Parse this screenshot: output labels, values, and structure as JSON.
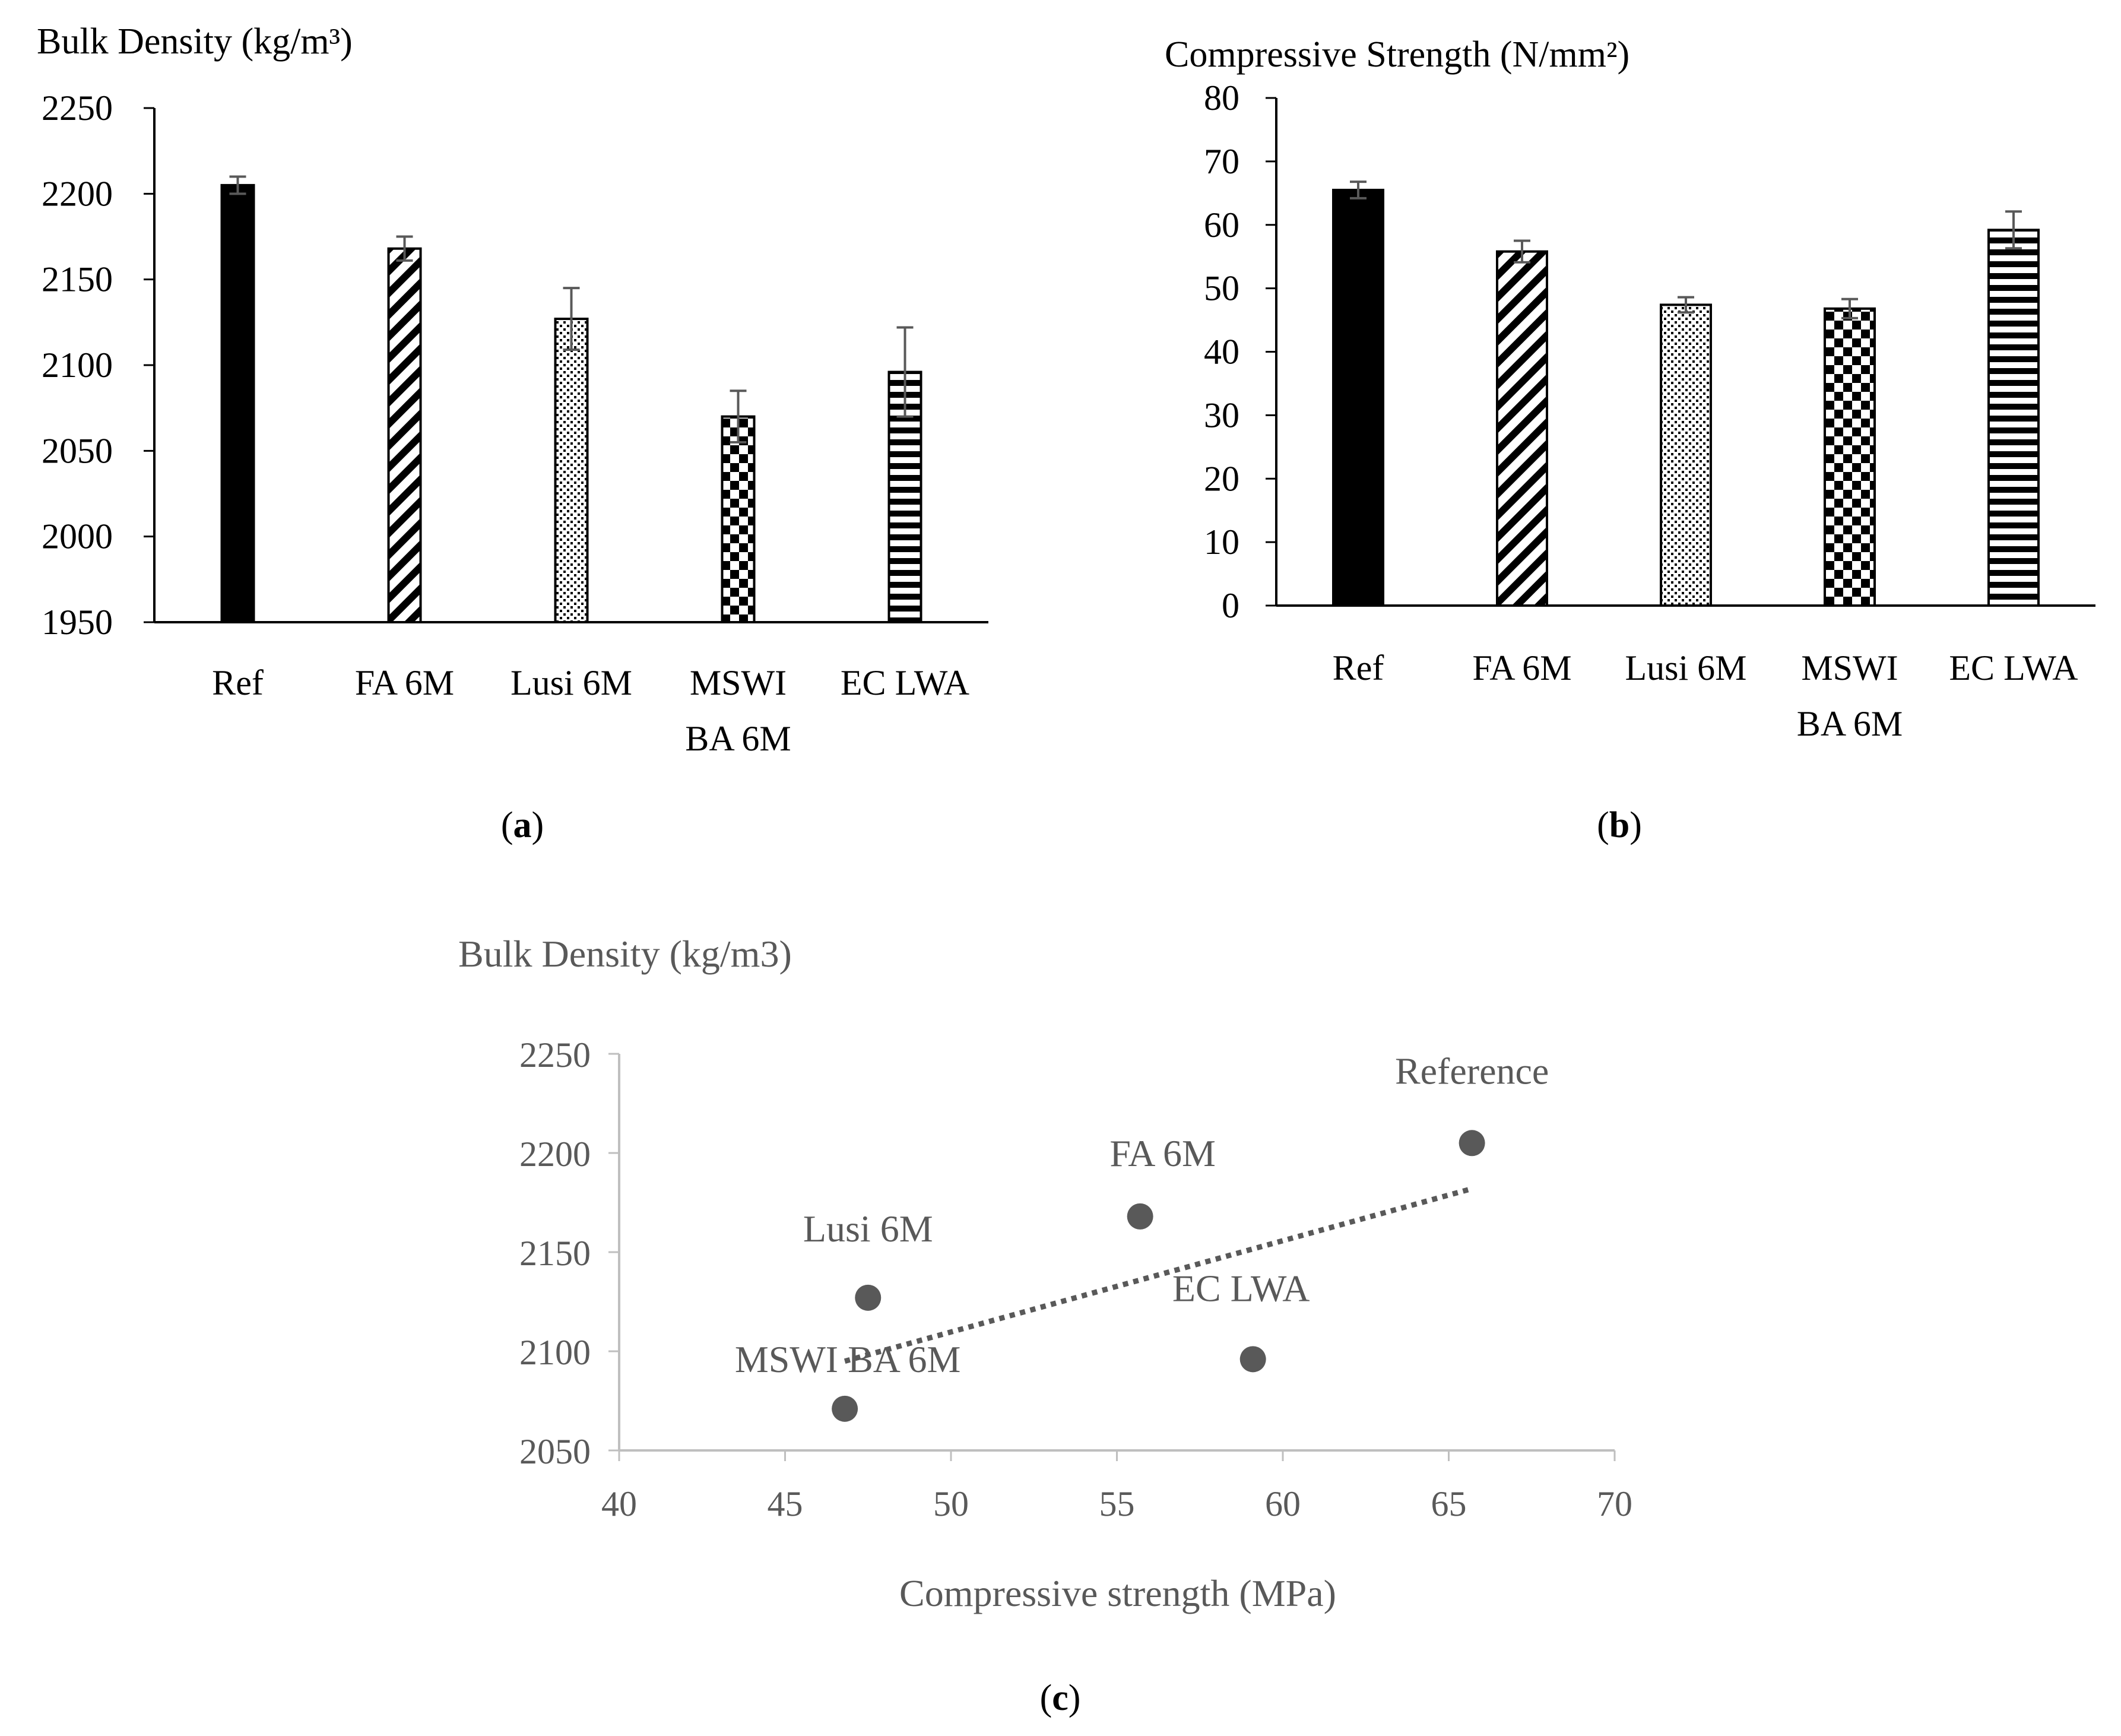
{
  "chart_data": [
    {
      "type": "bar",
      "title": "Bulk Density (kg/m³)",
      "panel_label": "(a)",
      "panel_letter": "a",
      "categories": [
        "Ref",
        "FA 6M",
        "Lusi 6M",
        "MSWI BA 6M",
        "EC LWA"
      ],
      "category_lines": [
        [
          "Ref"
        ],
        [
          "FA 6M"
        ],
        [
          "Lusi 6M"
        ],
        [
          "MSWI",
          "BA 6M"
        ],
        [
          "EC LWA"
        ]
      ],
      "values": [
        2205,
        2168,
        2127,
        2070,
        2096
      ],
      "errors": [
        5,
        7,
        18,
        15,
        26
      ],
      "ylim": [
        1950,
        2250
      ],
      "yticks": [
        1950,
        2000,
        2050,
        2100,
        2150,
        2200,
        2250
      ],
      "patterns": [
        "solid",
        "diagonal",
        "dots",
        "checker",
        "horizontal"
      ],
      "xlabel": "",
      "ylabel": "Bulk Density (kg/m³)"
    },
    {
      "type": "bar",
      "title": "Compressive Strength (N/mm²)",
      "panel_label": "(b)",
      "panel_letter": "b",
      "categories": [
        "Ref",
        "FA 6M",
        "Lusi 6M",
        "MSWI BA 6M",
        "EC LWA"
      ],
      "category_lines": [
        [
          "Ref"
        ],
        [
          "FA 6M"
        ],
        [
          "Lusi 6M"
        ],
        [
          "MSWI",
          "BA 6M"
        ],
        [
          "EC LWA"
        ]
      ],
      "values": [
        65.5,
        55.8,
        47.4,
        46.8,
        59.2
      ],
      "errors": [
        1.3,
        1.7,
        1.2,
        1.5,
        2.9
      ],
      "ylim": [
        0,
        80
      ],
      "yticks": [
        0,
        10,
        20,
        30,
        40,
        50,
        60,
        70,
        80
      ],
      "patterns": [
        "solid",
        "diagonal",
        "dots",
        "checker",
        "horizontal"
      ],
      "xlabel": "",
      "ylabel": "Compressive Strength (N/mm²)"
    },
    {
      "type": "scatter",
      "title": "Bulk Density (kg/m3)",
      "panel_label": "(c)",
      "panel_letter": "c",
      "points": [
        {
          "label": "Reference",
          "x": 65.7,
          "y": 2205
        },
        {
          "label": "FA 6M",
          "x": 55.7,
          "y": 2168
        },
        {
          "label": "Lusi 6M",
          "x": 47.5,
          "y": 2127
        },
        {
          "label": "EC LWA",
          "x": 59.1,
          "y": 2096
        },
        {
          "label": "MSWI BA 6M",
          "x": 46.8,
          "y": 2071
        }
      ],
      "trendline": {
        "style": "dotted",
        "x": [
          46.8,
          65.7
        ],
        "y": [
          2095,
          2182
        ]
      },
      "xlim": [
        40,
        70
      ],
      "ylim": [
        2050,
        2250
      ],
      "xticks": [
        40,
        45,
        50,
        55,
        60,
        65,
        70
      ],
      "yticks": [
        2050,
        2100,
        2150,
        2200,
        2250
      ],
      "xlabel": "Compressive strength (MPa)",
      "ylabel": "Bulk Density (kg/m3)",
      "marker_color": "#595959",
      "axis_color": "#bfbfbf",
      "text_color": "#595959"
    }
  ]
}
